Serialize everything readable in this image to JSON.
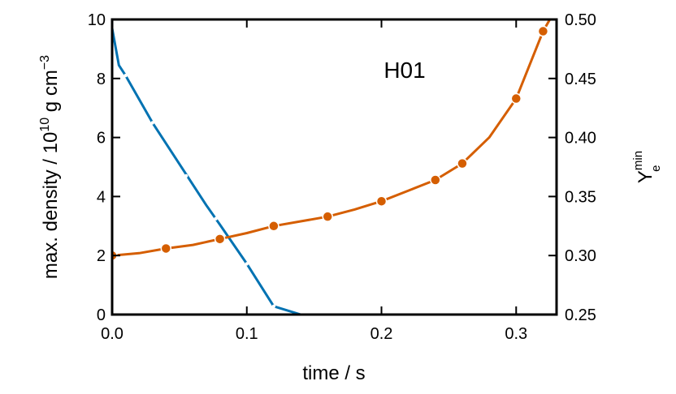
{
  "chart_data": {
    "type": "line",
    "annotation": "H01",
    "x_axis": {
      "title": "time / s",
      "range": [
        0,
        0.33
      ],
      "ticks": [
        0,
        0.1,
        0.2,
        0.3
      ],
      "tick_labels": [
        "0.0",
        "0.1",
        "0.2",
        "0.3"
      ]
    },
    "y_left": {
      "title_main": "max. density / 10",
      "title_exp": "10",
      "title_unit": " g cm",
      "title_unit_exp": "−3",
      "range": [
        0,
        10
      ],
      "ticks": [
        0,
        2,
        4,
        6,
        8,
        10
      ],
      "tick_labels": [
        "0",
        "2",
        "4",
        "6",
        "8",
        "10"
      ]
    },
    "y_right": {
      "title_base": "Y",
      "title_sub": "e",
      "title_sup": "min",
      "range": [
        0.25,
        0.5
      ],
      "ticks": [
        0.25,
        0.3,
        0.35,
        0.4,
        0.45,
        0.5
      ],
      "tick_labels": [
        "0.25",
        "0.30",
        "0.35",
        "0.40",
        "0.45",
        "0.50"
      ]
    },
    "series": [
      {
        "axis": "left",
        "color": "#0072b2",
        "x": [
          0.0,
          0.005,
          0.01,
          0.03,
          0.05,
          0.07,
          0.08,
          0.1,
          0.12,
          0.14
        ],
        "y": [
          9.7,
          8.45,
          8.1,
          6.5,
          5.1,
          3.7,
          3.05,
          1.72,
          0.28,
          0.0
        ],
        "marker_x": [
          0.01,
          0.03,
          0.055,
          0.077,
          0.1,
          0.12
        ],
        "marker_y": [
          8.1,
          6.5,
          4.7,
          3.25,
          1.72,
          0.28
        ]
      },
      {
        "axis": "right",
        "color": "#d55e00",
        "x": [
          0.0,
          0.02,
          0.04,
          0.06,
          0.08,
          0.1,
          0.12,
          0.14,
          0.16,
          0.18,
          0.2,
          0.22,
          0.24,
          0.26,
          0.28,
          0.3,
          0.32,
          0.33
        ],
        "y": [
          0.3,
          0.302,
          0.306,
          0.309,
          0.314,
          0.319,
          0.325,
          0.329,
          0.333,
          0.339,
          0.346,
          0.355,
          0.364,
          0.378,
          0.4,
          0.433,
          0.49,
          0.51
        ],
        "marker_x": [
          0.0,
          0.04,
          0.08,
          0.12,
          0.16,
          0.2,
          0.24,
          0.26,
          0.3,
          0.32
        ],
        "marker_y": [
          0.3,
          0.306,
          0.314,
          0.325,
          0.333,
          0.346,
          0.364,
          0.378,
          0.433,
          0.49
        ]
      }
    ]
  }
}
